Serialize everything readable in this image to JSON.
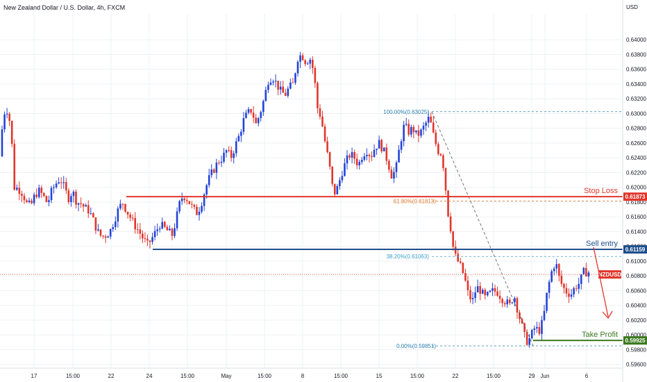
{
  "chart_data": {
    "type": "candlestick",
    "title": "New Zealand Dollar / U.S. Dollar, 4h, FXCM",
    "currency": "USD",
    "symbol": "NZDUSD",
    "ylim": [
      0.5955,
      0.6435
    ],
    "y_ticks": [
      "0.64000",
      "0.63800",
      "0.63600",
      "0.63400",
      "0.63200",
      "0.63000",
      "0.62800",
      "0.62600",
      "0.62400",
      "0.62200",
      "0.62000",
      "0.61800",
      "0.61600",
      "0.61400",
      "0.61200",
      "0.61000",
      "0.60800",
      "0.60600",
      "0.60400",
      "0.60200",
      "0.60000",
      "0.59800",
      "0.59600"
    ],
    "x_ticks": [
      "17",
      "15:00",
      "22",
      "24",
      "15:00",
      "May",
      "15:00",
      "8",
      "15:00",
      "15",
      "15:00",
      "22",
      "15:00",
      "29",
      "Jun",
      "6"
    ],
    "price_path": [
      [
        0,
        0.6218
      ],
      [
        4,
        0.625
      ],
      [
        8,
        0.6295
      ],
      [
        12,
        0.6308
      ],
      [
        16,
        0.63
      ],
      [
        20,
        0.627
      ],
      [
        24,
        0.62
      ],
      [
        30,
        0.6198
      ],
      [
        36,
        0.6192
      ],
      [
        42,
        0.6178
      ],
      [
        48,
        0.6175
      ],
      [
        54,
        0.619
      ],
      [
        60,
        0.6195
      ],
      [
        66,
        0.6188
      ],
      [
        72,
        0.6178
      ],
      [
        78,
        0.6195
      ],
      [
        84,
        0.6205
      ],
      [
        90,
        0.6212
      ],
      [
        96,
        0.62
      ],
      [
        102,
        0.6185
      ],
      [
        108,
        0.6195
      ],
      [
        114,
        0.618
      ],
      [
        120,
        0.6178
      ],
      [
        126,
        0.6172
      ],
      [
        132,
        0.6168
      ],
      [
        138,
        0.6155
      ],
      [
        144,
        0.614
      ],
      [
        150,
        0.6133
      ],
      [
        156,
        0.6135
      ],
      [
        162,
        0.614
      ],
      [
        168,
        0.6155
      ],
      [
        174,
        0.617
      ],
      [
        180,
        0.618
      ],
      [
        186,
        0.6168
      ],
      [
        192,
        0.6158
      ],
      [
        198,
        0.6148
      ],
      [
        204,
        0.614
      ],
      [
        210,
        0.613
      ],
      [
        216,
        0.6122
      ],
      [
        222,
        0.613
      ],
      [
        228,
        0.614
      ],
      [
        234,
        0.615
      ],
      [
        240,
        0.6145
      ],
      [
        246,
        0.614
      ],
      [
        252,
        0.6135
      ],
      [
        258,
        0.616
      ],
      [
        264,
        0.6185
      ],
      [
        270,
        0.6188
      ],
      [
        276,
        0.618
      ],
      [
        282,
        0.617
      ],
      [
        288,
        0.6165
      ],
      [
        294,
        0.618
      ],
      [
        300,
        0.62
      ],
      [
        306,
        0.6215
      ],
      [
        312,
        0.6225
      ],
      [
        318,
        0.6235
      ],
      [
        324,
        0.624
      ],
      [
        330,
        0.625
      ],
      [
        336,
        0.624
      ],
      [
        342,
        0.6255
      ],
      [
        348,
        0.627
      ],
      [
        354,
        0.629
      ],
      [
        360,
        0.63
      ],
      [
        366,
        0.6305
      ],
      [
        372,
        0.6285
      ],
      [
        378,
        0.63
      ],
      [
        384,
        0.632
      ],
      [
        390,
        0.6345
      ],
      [
        396,
        0.635
      ],
      [
        402,
        0.634
      ],
      [
        408,
        0.633
      ],
      [
        414,
        0.6325
      ],
      [
        420,
        0.6335
      ],
      [
        426,
        0.634
      ],
      [
        432,
        0.6375
      ],
      [
        438,
        0.638
      ],
      [
        444,
        0.637
      ],
      [
        450,
        0.6375
      ],
      [
        456,
        0.6355
      ],
      [
        460,
        0.631
      ],
      [
        466,
        0.6295
      ],
      [
        472,
        0.626
      ],
      [
        478,
        0.623
      ],
      [
        484,
        0.619
      ],
      [
        490,
        0.62
      ],
      [
        496,
        0.622
      ],
      [
        502,
        0.6235
      ],
      [
        508,
        0.6245
      ],
      [
        514,
        0.624
      ],
      [
        520,
        0.623
      ],
      [
        526,
        0.6245
      ],
      [
        532,
        0.625
      ],
      [
        538,
        0.6242
      ],
      [
        544,
        0.6255
      ],
      [
        550,
        0.626
      ],
      [
        556,
        0.625
      ],
      [
        562,
        0.6235
      ],
      [
        568,
        0.6215
      ],
      [
        574,
        0.6225
      ],
      [
        580,
        0.626
      ],
      [
        586,
        0.6285
      ],
      [
        592,
        0.6275
      ],
      [
        598,
        0.628
      ],
      [
        604,
        0.627
      ],
      [
        610,
        0.6275
      ],
      [
        616,
        0.6285
      ],
      [
        622,
        0.6295
      ],
      [
        628,
        0.627
      ],
      [
        634,
        0.625
      ],
      [
        640,
        0.6245
      ],
      [
        644,
        0.6215
      ],
      [
        648,
        0.617
      ],
      [
        652,
        0.615
      ],
      [
        656,
        0.612
      ],
      [
        660,
        0.6105
      ],
      [
        666,
        0.6095
      ],
      [
        672,
        0.608
      ],
      [
        678,
        0.6055
      ],
      [
        684,
        0.6045
      ],
      [
        690,
        0.6065
      ],
      [
        696,
        0.606
      ],
      [
        702,
        0.605
      ],
      [
        708,
        0.6055
      ],
      [
        714,
        0.606
      ],
      [
        720,
        0.6058
      ],
      [
        726,
        0.605
      ],
      [
        732,
        0.6045
      ],
      [
        738,
        0.604
      ],
      [
        744,
        0.6055
      ],
      [
        750,
        0.603
      ],
      [
        756,
        0.601
      ],
      [
        760,
        0.5995
      ],
      [
        764,
        0.599
      ],
      [
        768,
        0.5998
      ],
      [
        774,
        0.601
      ],
      [
        780,
        0.6005
      ],
      [
        786,
        0.602
      ],
      [
        792,
        0.606
      ],
      [
        798,
        0.6085
      ],
      [
        804,
        0.61
      ],
      [
        808,
        0.608
      ],
      [
        814,
        0.6065
      ],
      [
        820,
        0.6058
      ],
      [
        826,
        0.6055
      ],
      [
        832,
        0.6065
      ],
      [
        838,
        0.607
      ],
      [
        844,
        0.6085
      ],
      [
        850,
        0.6085
      ]
    ],
    "horizontal_levels": [
      {
        "name": "Stop Loss",
        "value": 0.61873,
        "value_label": "0.61873",
        "color": "#e0362c"
      },
      {
        "name": "Sell entry",
        "value": 0.61159,
        "value_label": "0.61159",
        "color": "#1f4e8c"
      },
      {
        "name": "Take Profit",
        "value": 0.59925,
        "value_label": "0.59925",
        "color": "#3c7a1f"
      }
    ],
    "fibonacci": [
      {
        "label": "100.00%(0.63025)",
        "value": 0.63025,
        "color": "#2a7fb0"
      },
      {
        "label": "61.80%(0.61813)",
        "value": 0.61813,
        "color": "#e07b2c"
      },
      {
        "label": "38.20%(0.61063)",
        "value": 0.61063,
        "color": "#3aa0c8"
      },
      {
        "label": "0.00%(0.59851)",
        "value": 0.59851,
        "color": "#2a7fb0"
      }
    ],
    "last_price": {
      "value": 0.6082,
      "label": "NZDUSD",
      "color": "#e0362c"
    },
    "colors": {
      "up": "#2343d6",
      "down": "#e0362c",
      "grid": "#eef0f4",
      "axis_text": "#131722"
    },
    "grid": true
  }
}
